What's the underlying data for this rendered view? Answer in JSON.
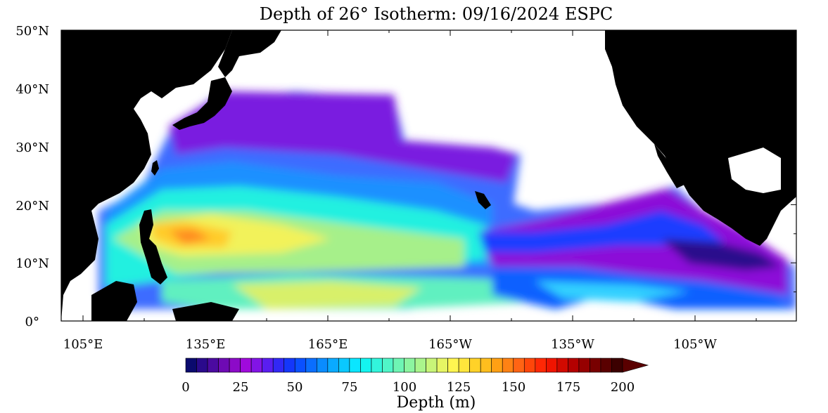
{
  "title": "Depth of 26° Isotherm: 09/16/2024 ESPC",
  "lat_labels": [
    "50°N",
    "40°N",
    "30°N",
    "20°N",
    "10°N",
    "0°"
  ],
  "lon_labels": [
    "105°E",
    "135°E",
    "165°E",
    "165°W",
    "135°W",
    "105°W"
  ],
  "colorbar": {
    "tick_labels": [
      "0",
      "25",
      "50",
      "75",
      "100",
      "125",
      "150",
      "175",
      "200"
    ],
    "label": "Depth (m)",
    "min": 0,
    "max": 200,
    "step": 5,
    "extend": "max"
  },
  "colors": {
    "land": "#000000",
    "no_data": "#ffffff",
    "palette": [
      "#0a0a6e",
      "#2a0a8c",
      "#4b0aa0",
      "#6e0ab4",
      "#8c0ac8",
      "#a00adc",
      "#8214e6",
      "#5a1ef0",
      "#3228f5",
      "#1437fa",
      "#0a50ff",
      "#0a6eff",
      "#0a8cff",
      "#0aaaff",
      "#0ac8ff",
      "#0ae6ff",
      "#14f5f0",
      "#32f5dc",
      "#50f5c8",
      "#6ef5b4",
      "#8cf5a0",
      "#aaf58c",
      "#c8f578",
      "#e6f564",
      "#fff550",
      "#ffe63c",
      "#ffd228",
      "#ffbe1e",
      "#ffa014",
      "#ff8214",
      "#ff6414",
      "#ff460a",
      "#ff2805",
      "#f01400",
      "#d20a00",
      "#b40000",
      "#960000",
      "#780000",
      "#5a0000",
      "#3c0000"
    ]
  }
}
